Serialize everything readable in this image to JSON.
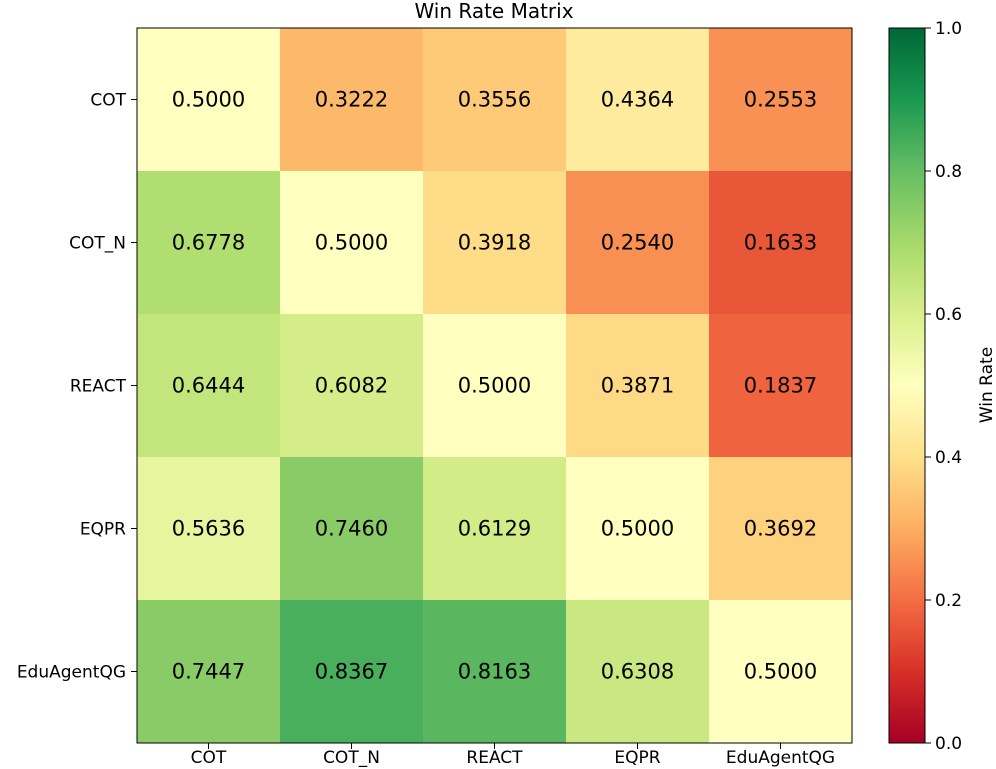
{
  "chart_data": {
    "type": "heatmap",
    "title": "Win Rate Matrix",
    "rows": [
      "COT",
      "COT_N",
      "REACT",
      "EQPR",
      "EduAgentQG"
    ],
    "columns": [
      "COT",
      "COT_N",
      "REACT",
      "EQPR",
      "EduAgentQG"
    ],
    "values": [
      [
        0.5,
        0.3222,
        0.3556,
        0.4364,
        0.2553
      ],
      [
        0.6778,
        0.5,
        0.3918,
        0.254,
        0.1633
      ],
      [
        0.6444,
        0.6082,
        0.5,
        0.3871,
        0.1837
      ],
      [
        0.5636,
        0.746,
        0.6129,
        0.5,
        0.3692
      ],
      [
        0.7447,
        0.8367,
        0.8163,
        0.6308,
        0.5
      ]
    ],
    "value_labels": [
      [
        "0.5000",
        "0.3222",
        "0.3556",
        "0.4364",
        "0.2553"
      ],
      [
        "0.6778",
        "0.5000",
        "0.3918",
        "0.2540",
        "0.1633"
      ],
      [
        "0.6444",
        "0.6082",
        "0.5000",
        "0.3871",
        "0.1837"
      ],
      [
        "0.5636",
        "0.7460",
        "0.6129",
        "0.5000",
        "0.3692"
      ],
      [
        "0.7447",
        "0.8367",
        "0.8163",
        "0.6308",
        "0.5000"
      ]
    ],
    "colormap": "RdYlGn",
    "vmin": 0.0,
    "vmax": 1.0,
    "colorbar": {
      "label": "Win Rate",
      "ticks": [
        "0.0",
        "0.2",
        "0.4",
        "0.6",
        "0.8",
        "1.0"
      ],
      "position": "right"
    }
  }
}
